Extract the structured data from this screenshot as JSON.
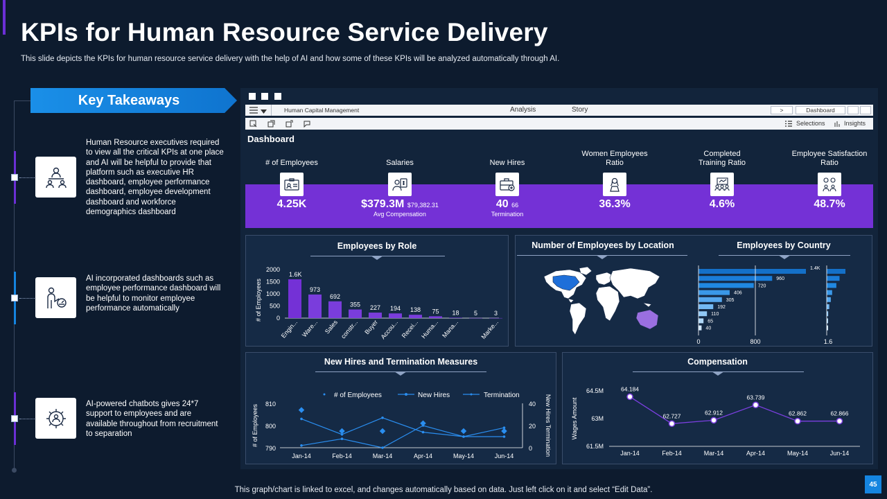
{
  "slide": {
    "title": "KPIs for Human Resource Service Delivery",
    "subtitle": "This slide depicts the KPIs for human resource service delivery with the help of AI  and how some of these KPIs will be analyzed automatically through AI.",
    "footer": "This graph/chart is linked to excel,  and changes automatically based on data. Just left click on it and select “Edit Data”.",
    "page_number": "45",
    "colors": {
      "background": "#0d1b2e",
      "accent_purple": "#7431d6",
      "accent_blue": "#1585e0"
    }
  },
  "takeaways": {
    "heading": "Key Takeaways",
    "items": [
      {
        "icon": "presenter-people-icon",
        "text": "Human Resource executives required to view all the critical KPIs at one place and AI  will be helpful to provide that platform such as executive HR dashboard, employee performance dashboard, employee development dashboard and workforce demographics dashboard"
      },
      {
        "icon": "employee-performance-icon",
        "text": "AI  incorporated dashboards such as employee performance dashboard  will be helpful to monitor employee performance automatically"
      },
      {
        "icon": "gear-people-icon",
        "text": "AI-powered chatbots gives 24*7 support to employees and are available throughout from recruitment to separation"
      }
    ]
  },
  "dashboard": {
    "app_title": "Human Capital Management",
    "nav": {
      "analysis": "Analysis",
      "story": "Story",
      "next": ">",
      "dashboard": "Dashboard"
    },
    "tools": {
      "selections": "Selections",
      "insights": "Insights"
    },
    "heading": "Dashboard",
    "kpis": [
      {
        "title": "# of Employees",
        "value": "4.25K",
        "extra": "",
        "sub": "",
        "icon": "id-card-icon"
      },
      {
        "title": "Salaries",
        "value": "$379.3M",
        "extra": "$79,382.31",
        "sub": "Avg Compensation",
        "icon": "salary-icon"
      },
      {
        "title": "New Hires",
        "value": "40",
        "extra": "66",
        "sub": "Termination",
        "icon": "briefcase-icon"
      },
      {
        "title": "Women Employees Ratio",
        "value": "36.3%",
        "extra": "",
        "sub": "",
        "icon": "woman-icon"
      },
      {
        "title": "Completed Training Ratio",
        "value": "4.6%",
        "extra": "",
        "sub": "",
        "icon": "training-icon"
      },
      {
        "title": "Employee Satisfaction Ratio",
        "value": "48.7%",
        "extra": "",
        "sub": "",
        "icon": "satisfaction-icon"
      }
    ],
    "panels": {
      "role": "Employees by Role",
      "location": "Number of Employees by Location",
      "country": "Employees by Country",
      "hires": "New Hires and Termination Measures",
      "compensation": "Compensation"
    }
  },
  "chart_data": [
    {
      "type": "bar",
      "title": "Employees by Role",
      "ylabel": "# of Employees",
      "ylim": [
        0,
        2000
      ],
      "yticks": [
        "2000",
        "1500",
        "1000",
        "500",
        "0"
      ],
      "yticks_values": [
        2000,
        1500,
        1000,
        500,
        0
      ],
      "categories": [
        "Engin...",
        "Ware...",
        "Sales",
        "constr...",
        "Buyer",
        "Accou...",
        "Recei...",
        "Huma...",
        "Mana...",
        "",
        "Marke..."
      ],
      "values": [
        1600,
        973,
        692,
        355,
        227,
        194,
        138,
        75,
        18,
        5,
        3
      ],
      "labels": [
        "1.6K",
        "973",
        "692",
        "355",
        "227",
        "194",
        "138",
        "75",
        "18",
        "5",
        "3"
      ]
    },
    {
      "type": "bar",
      "title": "Employees by Country",
      "orientation": "horizontal",
      "xticks": [
        "0",
        "800",
        "1.6"
      ],
      "values": [
        1400,
        960,
        720,
        406,
        305,
        192,
        110,
        65,
        40
      ],
      "labels": [
        "1.4K",
        "960",
        "720",
        "406",
        "305",
        "192",
        "110",
        "65",
        "40"
      ]
    },
    {
      "type": "line",
      "title": "New Hires and Termination Measures",
      "x": [
        "Jan-14",
        "Feb-14",
        "Mar-14",
        "Apr-14",
        "May-14",
        "Jun-14"
      ],
      "ylabel": "# of Employees",
      "y2label": "New Hires Termination",
      "ylim": [
        790,
        810
      ],
      "yticks": [
        "810",
        "800",
        "790"
      ],
      "y2lim": [
        0,
        40
      ],
      "y2ticks": [
        "40",
        "20",
        "0"
      ],
      "series": [
        {
          "name": "# of Employees",
          "axis": "y2",
          "values": [
            34,
            15,
            15,
            22,
            15,
            15
          ]
        },
        {
          "name": "New Hires",
          "axis": "y2",
          "values": [
            26,
            12,
            27,
            14,
            10,
            10
          ]
        },
        {
          "name": "Termination",
          "axis": "y2",
          "values": [
            2,
            8,
            0,
            20,
            10,
            18
          ]
        }
      ]
    },
    {
      "type": "line",
      "title": "Compensation",
      "ylabel": "Wages Amount",
      "x": [
        "Jan-14",
        "Feb-14",
        "Mar-14",
        "Apr-14",
        "May-14",
        "Jun-14"
      ],
      "ylim": [
        61.5,
        64.5
      ],
      "yticks": [
        "64.5M",
        "63M",
        "61.5M"
      ],
      "yticks_values": [
        64.5,
        63,
        61.5
      ],
      "values": [
        64.184,
        62.727,
        62.912,
        63.739,
        62.862,
        62.866
      ],
      "labels": [
        "64.184",
        "62.727",
        "62.912",
        "63.739",
        "62.862",
        "62.866"
      ]
    }
  ]
}
